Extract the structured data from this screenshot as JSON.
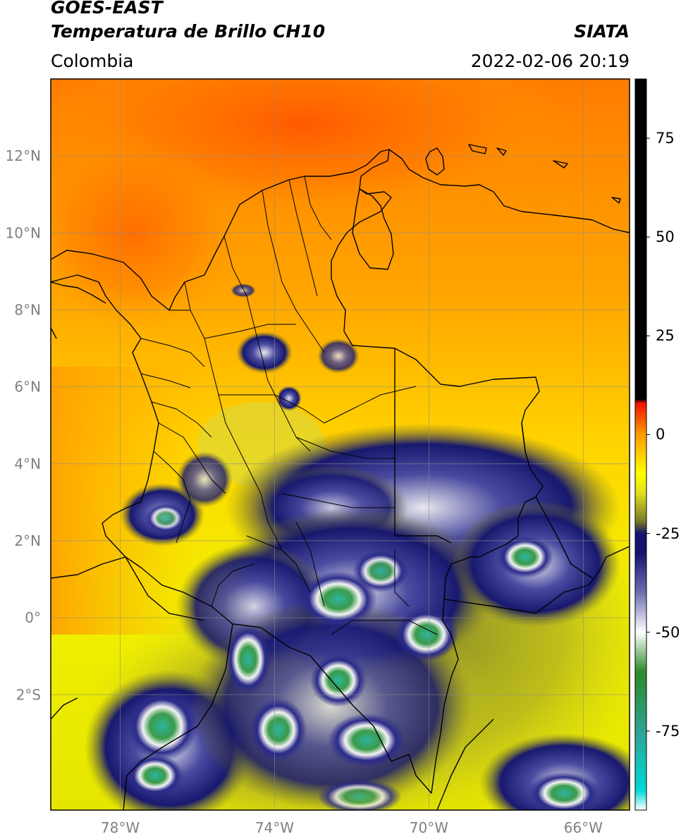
{
  "header": {
    "satellite": "GOES-EAST",
    "product": "Temperatura de Brillo CH10",
    "agency": "SIATA",
    "region": "Colombia",
    "datetime": "2022-02-06 20:19"
  },
  "map": {
    "lon_range": [
      -79.8,
      -64.8
    ],
    "lat_range": [
      -5.0,
      14.0
    ],
    "lat_ticks": [
      {
        "value": 12,
        "label": "12°N"
      },
      {
        "value": 10,
        "label": "10°N"
      },
      {
        "value": 8,
        "label": "8°N"
      },
      {
        "value": 6,
        "label": "6°N"
      },
      {
        "value": 4,
        "label": "4°N"
      },
      {
        "value": 2,
        "label": "2°N"
      },
      {
        "value": 0,
        "label": "0°"
      },
      {
        "value": -2,
        "label": "2°S"
      }
    ],
    "lon_ticks": [
      {
        "value": -78,
        "label": "78°W"
      },
      {
        "value": -74,
        "label": "74°W"
      },
      {
        "value": -70,
        "label": "70°W"
      },
      {
        "value": -66,
        "label": "66°W"
      }
    ],
    "gridlines": true
  },
  "colorbar": {
    "range": [
      -95,
      90
    ],
    "ticks": [
      {
        "value": 75,
        "label": "75"
      },
      {
        "value": 50,
        "label": "50"
      },
      {
        "value": 25,
        "label": "25"
      },
      {
        "value": 0,
        "label": "0"
      },
      {
        "value": -25,
        "label": "-25"
      },
      {
        "value": -50,
        "label": "-50"
      },
      {
        "value": -75,
        "label": "-75"
      }
    ],
    "stops": [
      {
        "value": -95,
        "color": "#ffffff"
      },
      {
        "value": -90,
        "color": "#00d8d8"
      },
      {
        "value": -75,
        "color": "#2ea392"
      },
      {
        "value": -60,
        "color": "#2b8a2b"
      },
      {
        "value": -50,
        "color": "#ffffff"
      },
      {
        "value": -40,
        "color": "#6f6fb2"
      },
      {
        "value": -30,
        "color": "#14146e"
      },
      {
        "value": -25,
        "color": "#14146e"
      },
      {
        "value": -22,
        "color": "#77772a"
      },
      {
        "value": -15,
        "color": "#dddd1e"
      },
      {
        "value": -10,
        "color": "#ffff00"
      },
      {
        "value": 0,
        "color": "#ff9d00"
      },
      {
        "value": 8,
        "color": "#ee1100"
      },
      {
        "value": 9,
        "color": "#000000"
      },
      {
        "value": 90,
        "color": "#000000"
      }
    ]
  }
}
